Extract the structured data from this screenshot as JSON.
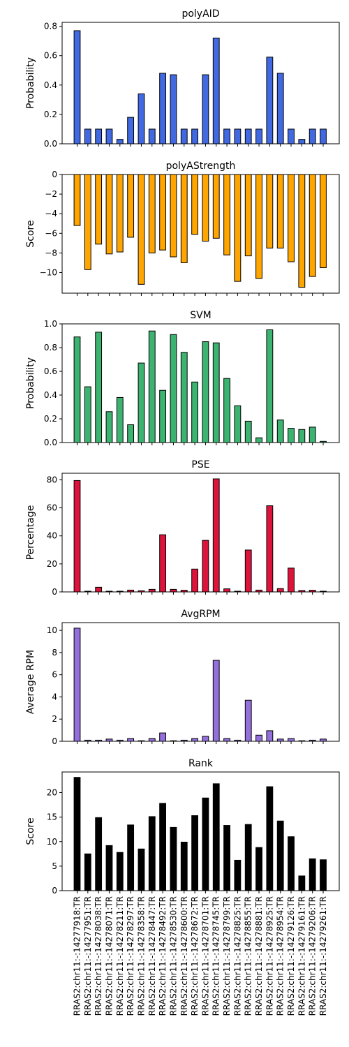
{
  "chart_data": {
    "type": "bar",
    "categories": [
      "RRAS2:chr11:-:14277918:TR",
      "RRAS2:chr11:-:14277951:TR",
      "RRAS2:chr11:-:14278038:TR",
      "RRAS2:chr11:-:14278071:TR",
      "RRAS2:chr11:-:14278211:TR",
      "RRAS2:chr11:-:14278297:TR",
      "RRAS2:chr11:-:14278358:TR",
      "RRAS2:chr11:-:14278447:TR",
      "RRAS2:chr11:-:14278492:TR",
      "RRAS2:chr11:-:14278530:TR",
      "RRAS2:chr11:-:14278600:TR",
      "RRAS2:chr11:-:14278672:TR",
      "RRAS2:chr11:-:14278701:TR",
      "RRAS2:chr11:-:14278745:TR",
      "RRAS2:chr11:-:14278799:TR",
      "RRAS2:chr11:-:14278825:TR",
      "RRAS2:chr11:-:14278855:TR",
      "RRAS2:chr11:-:14278881:TR",
      "RRAS2:chr11:-:14278925:TR",
      "RRAS2:chr11:-:14278954:TR",
      "RRAS2:chr11:-:14279126:TR",
      "RRAS2:chr11:-:14279161:TR",
      "RRAS2:chr11:-:14279206:TR",
      "RRAS2:chr11:-:14279261:TR"
    ],
    "panels": [
      {
        "title": "polyAID",
        "ylabel": "Probability",
        "color": "#4169e1",
        "ylim": [
          0,
          0.8268
        ],
        "yticks": [
          0.0,
          0.2,
          0.4,
          0.6,
          0.8
        ],
        "yticklabels": [
          "0.0",
          "0.2",
          "0.4",
          "0.6",
          "0.8"
        ],
        "values": [
          0.77,
          0.1,
          0.1,
          0.1,
          0.03,
          0.18,
          0.34,
          0.1,
          0.48,
          0.47,
          0.1,
          0.1,
          0.47,
          0.72,
          0.1,
          0.1,
          0.1,
          0.1,
          0.59,
          0.48,
          0.1,
          0.03,
          0.1,
          0.1
        ]
      },
      {
        "title": "polyAStrength",
        "ylabel": "Score",
        "color": "#ffa500",
        "ylim": [
          -12.1,
          0
        ],
        "yticks": [
          0,
          -2,
          -4,
          -6,
          -8,
          -10
        ],
        "yticklabels": [
          "0",
          "−2",
          "−4",
          "−6",
          "−8",
          "−10"
        ],
        "values": [
          -5.2,
          -9.7,
          -7.1,
          -8.1,
          -7.9,
          -6.4,
          -11.2,
          -8.0,
          -7.7,
          -8.4,
          -9.0,
          -6.1,
          -6.8,
          -6.5,
          -8.2,
          -10.9,
          -8.3,
          -10.6,
          -7.5,
          -7.5,
          -8.9,
          -11.5,
          -10.4,
          -9.5
        ]
      },
      {
        "title": "SVM",
        "ylabel": "Probability",
        "color": "#3cb371",
        "ylim": [
          0,
          1.0
        ],
        "yticks": [
          0.0,
          0.2,
          0.4,
          0.6,
          0.8,
          1.0
        ],
        "yticklabels": [
          "0.0",
          "0.2",
          "0.4",
          "0.6",
          "0.8",
          "1.0"
        ],
        "values": [
          0.89,
          0.47,
          0.93,
          0.26,
          0.38,
          0.15,
          0.67,
          0.94,
          0.44,
          0.91,
          0.76,
          0.51,
          0.85,
          0.84,
          0.54,
          0.31,
          0.18,
          0.04,
          0.95,
          0.19,
          0.12,
          0.11,
          0.13,
          0.01
        ]
      },
      {
        "title": "PSE",
        "ylabel": "Percentage",
        "color": "#dc143c",
        "ylim": [
          0,
          84.7
        ],
        "yticks": [
          0,
          20,
          40,
          60,
          80
        ],
        "yticklabels": [
          "0",
          "20",
          "40",
          "60",
          "80"
        ],
        "values": [
          79.5,
          0.5,
          3.3,
          0.5,
          0.5,
          1.3,
          0.8,
          1.8,
          40.8,
          1.8,
          1.2,
          16.3,
          36.8,
          80.7,
          2.2,
          0.5,
          29.9,
          1.3,
          61.5,
          2.4,
          17.0,
          1.0,
          1.2,
          0.5
        ]
      },
      {
        "title": "AvgRPM",
        "ylabel": "Average RPM",
        "color": "#9370db",
        "ylim": [
          0,
          10.7
        ],
        "yticks": [
          0,
          2,
          4,
          6,
          8,
          10
        ],
        "yticklabels": [
          "0",
          "2",
          "4",
          "6",
          "8",
          "10"
        ],
        "values": [
          10.2,
          0.1,
          0.1,
          0.2,
          0.1,
          0.25,
          0.05,
          0.25,
          0.75,
          0.05,
          0.1,
          0.25,
          0.45,
          7.3,
          0.25,
          0.1,
          3.7,
          0.55,
          0.95,
          0.2,
          0.25,
          0.05,
          0.1,
          0.2
        ]
      },
      {
        "title": "Rank",
        "ylabel": "Score",
        "color": "#000000",
        "ylim": [
          0,
          24.2
        ],
        "yticks": [
          0,
          5,
          10,
          15,
          20
        ],
        "yticklabels": [
          "0",
          "5",
          "10",
          "15",
          "20"
        ],
        "values": [
          23.1,
          7.5,
          14.9,
          9.2,
          7.8,
          13.4,
          8.5,
          15.1,
          17.8,
          12.9,
          9.9,
          15.3,
          18.9,
          21.8,
          13.3,
          6.2,
          13.5,
          8.8,
          21.2,
          14.2,
          11.0,
          3.0,
          6.5,
          6.3
        ]
      }
    ]
  }
}
